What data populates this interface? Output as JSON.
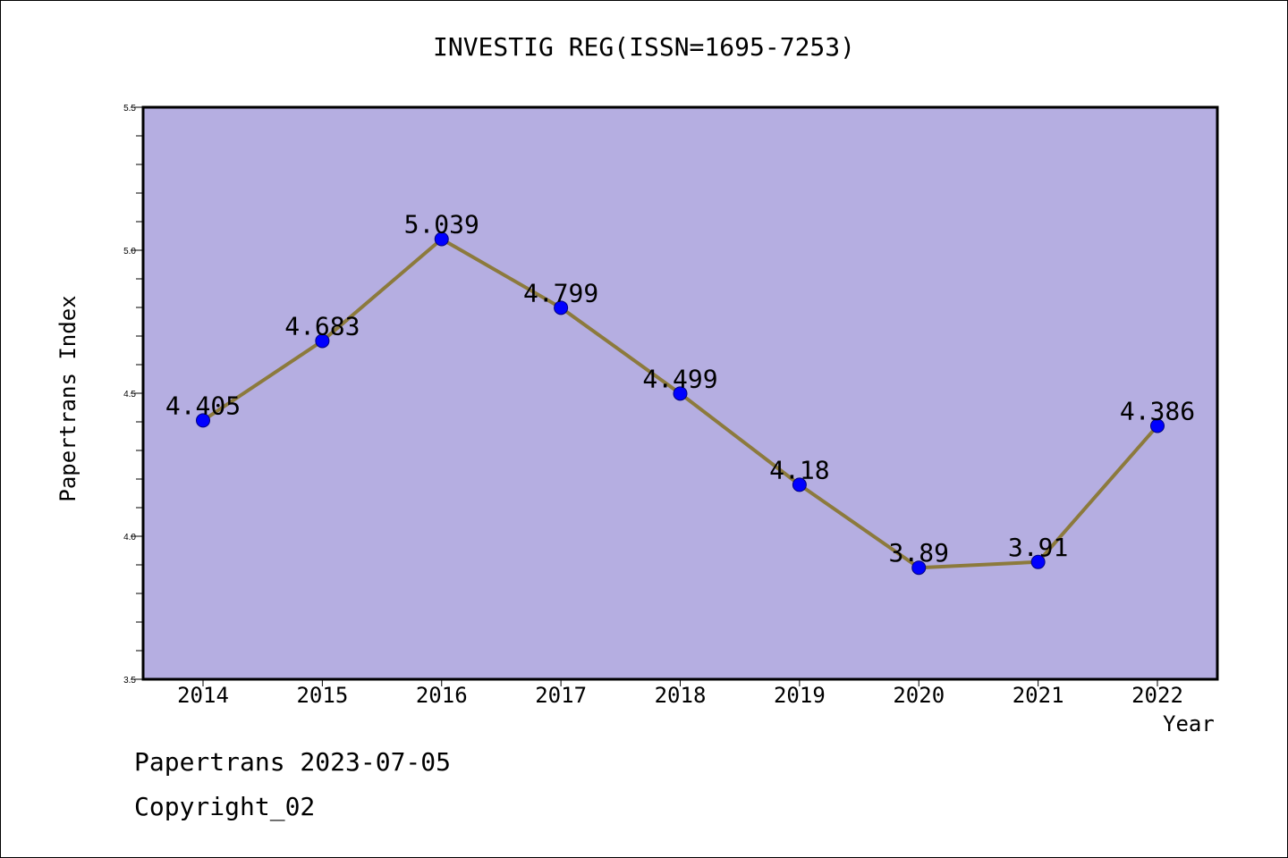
{
  "chart_data": {
    "type": "line",
    "title": "INVESTIG REG(ISSN=1695-7253)",
    "xlabel": "Year",
    "ylabel": "Papertrans Index",
    "categories": [
      "2014",
      "2015",
      "2016",
      "2017",
      "2018",
      "2019",
      "2020",
      "2021",
      "2022"
    ],
    "series": [
      {
        "values": [
          4.405,
          4.683,
          5.039,
          4.799,
          4.499,
          4.18,
          3.89,
          3.91,
          4.386
        ],
        "labels": [
          "4.405",
          "4.683",
          "5.039",
          "4.799",
          "4.499",
          "4.18",
          "3.89",
          "3.91",
          "4.386"
        ]
      }
    ],
    "ylim": [
      3.5,
      5.5
    ],
    "yticks": [
      "3.5",
      "4.0",
      "4.5",
      "5.0",
      "5.5"
    ],
    "grid": false,
    "colors": {
      "plot_background": "#b5aee1",
      "line": "#8c7a3c",
      "marker": "#0000ff"
    }
  },
  "footer": {
    "line1": "Papertrans 2023-07-05",
    "line2": "Copyright_02"
  }
}
